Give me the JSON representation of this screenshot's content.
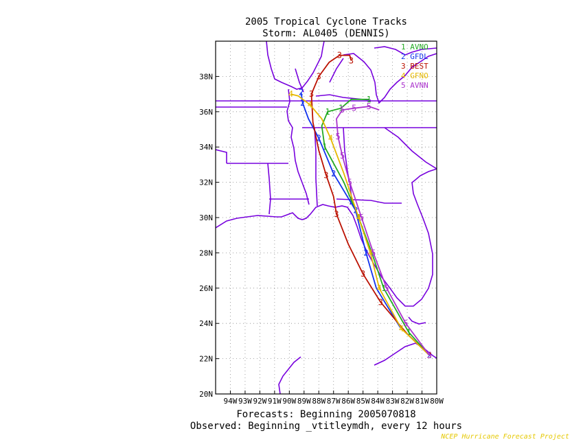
{
  "chart_data": {
    "type": "line",
    "title": "2005 Tropical Cyclone Tracks",
    "subtitle": "Storm: AL0405 (DENNIS)",
    "footer": [
      "Forecasts: Beginning 2005070818",
      "Observed: Beginning _vtitleymdh, every 12 hours"
    ],
    "credit": "NCEP Hurricane Forecast Project",
    "xlim": [
      -95,
      -80
    ],
    "ylim": [
      20,
      40
    ],
    "x_ticks": [
      {
        "value": -94,
        "label": "94W"
      },
      {
        "value": -93,
        "label": "93W"
      },
      {
        "value": -92,
        "label": "92W"
      },
      {
        "value": -91,
        "label": "91W"
      },
      {
        "value": -90,
        "label": "90W"
      },
      {
        "value": -89,
        "label": "89W"
      },
      {
        "value": -88,
        "label": "88W"
      },
      {
        "value": -87,
        "label": "87W"
      },
      {
        "value": -86,
        "label": "86W"
      },
      {
        "value": -85,
        "label": "85W"
      },
      {
        "value": -84,
        "label": "84W"
      },
      {
        "value": -83,
        "label": "83W"
      },
      {
        "value": -82,
        "label": "82W"
      },
      {
        "value": -81,
        "label": "81W"
      },
      {
        "value": -80,
        "label": "80W"
      }
    ],
    "y_ticks": [
      {
        "value": 20,
        "label": "20N"
      },
      {
        "value": 22,
        "label": "22N"
      },
      {
        "value": 24,
        "label": "24N"
      },
      {
        "value": 26,
        "label": "26N"
      },
      {
        "value": 28,
        "label": "28N"
      },
      {
        "value": 30,
        "label": "30N"
      },
      {
        "value": 32,
        "label": "32N"
      },
      {
        "value": 34,
        "label": "34N"
      },
      {
        "value": 36,
        "label": "36N"
      },
      {
        "value": 38,
        "label": "38N"
      }
    ],
    "grid": true,
    "legend_position": "top-right",
    "series": [
      {
        "marker": "1",
        "name": "AVNO",
        "color": "#22aa22",
        "x": [
          -80.5,
          -81.9,
          -83.6,
          -84.4,
          -85.3,
          -86.3,
          -87.6,
          -87.8,
          -87.4,
          -86.5,
          -85.8,
          -84.6
        ],
        "y": [
          22.2,
          23.5,
          26.0,
          28.0,
          30.0,
          32.0,
          34.0,
          35.2,
          36.0,
          36.2,
          36.7,
          36.7
        ],
        "markers_at": [
          1,
          2,
          4,
          6,
          8,
          9,
          11
        ]
      },
      {
        "marker": "2",
        "name": "GFDL",
        "color": "#1133ee",
        "x": [
          -80.5,
          -82.5,
          -84.1,
          -84.8,
          -85.5,
          -87.0,
          -88.0,
          -88.7,
          -89.1,
          -89.2
        ],
        "y": [
          22.2,
          23.8,
          26.0,
          28.0,
          30.4,
          32.5,
          34.5,
          35.6,
          36.5,
          37.1
        ],
        "markers_at": [
          0,
          3,
          4,
          5,
          6,
          8,
          9
        ]
      },
      {
        "marker": "3",
        "name": "BEST",
        "color": "#bb1100",
        "x": [
          -80.5,
          -82.0,
          -83.8,
          -85.0,
          -86.0,
          -86.8,
          -87.0,
          -87.5,
          -88.0,
          -88.4,
          -88.5,
          -88.0,
          -87.3,
          -86.6,
          -85.9,
          -85.8
        ],
        "y": [
          22.2,
          23.4,
          25.2,
          26.8,
          28.5,
          30.2,
          31.2,
          32.4,
          33.8,
          35.4,
          37.0,
          38.0,
          38.8,
          39.2,
          39.2,
          38.9
        ],
        "markers_at": [
          0,
          2,
          3,
          5,
          7,
          10,
          11,
          13,
          15
        ]
      },
      {
        "marker": "4",
        "name": "GFNO",
        "color": "#e5b800",
        "x": [
          -80.5,
          -82.4,
          -83.9,
          -84.5,
          -85.3,
          -86.3,
          -87.2,
          -87.8,
          -88.6,
          -89.4,
          -89.9
        ],
        "y": [
          22.2,
          23.7,
          26.0,
          28.0,
          30.0,
          32.5,
          34.5,
          35.6,
          36.4,
          36.9,
          37.0
        ],
        "markers_at": [
          1,
          2,
          3,
          4,
          6,
          8,
          10
        ]
      },
      {
        "marker": "5",
        "name": "AVNN",
        "color": "#aa33cc",
        "x": [
          -80.5,
          -82.1,
          -83.4,
          -84.3,
          -85.1,
          -85.9,
          -86.4,
          -86.7,
          -86.8,
          -86.4,
          -85.6,
          -84.6,
          -83.9
        ],
        "y": [
          22.2,
          24.0,
          26.0,
          28.0,
          30.0,
          32.0,
          33.5,
          34.6,
          35.6,
          36.1,
          36.2,
          36.3,
          36.1
        ],
        "markers_at": [
          0,
          1,
          2,
          3,
          4,
          5,
          6,
          7,
          9,
          10,
          11
        ]
      }
    ]
  },
  "map": {
    "land_color": "#7700dd",
    "grid_color": "#888888"
  }
}
